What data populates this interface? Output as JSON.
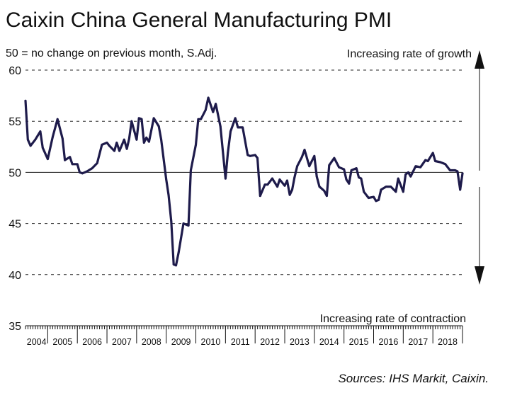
{
  "chart_data": {
    "type": "line",
    "title": "Caixin China General Manufacturing PMI",
    "subtitle": "50 = no change on previous month, S.Adj.",
    "annotation_top": "Increasing rate of growth",
    "annotation_bottom": "Increasing rate of contraction",
    "source": "Sources: IHS Markit, Caixin.",
    "xlabel": "",
    "ylabel": "",
    "ylim": [
      35,
      60
    ],
    "yticks": [
      35,
      40,
      45,
      50,
      55,
      60
    ],
    "grid": "dashed horizontal at 40, 45, 55, 60; solid at 50",
    "x_start": 2004.25,
    "x_end": 2019.0,
    "x_tick_labels": [
      "2004",
      "2005",
      "2006",
      "2007",
      "2008",
      "2009",
      "2010",
      "2011",
      "2012",
      "2013",
      "2014",
      "2015",
      "2016",
      "2017",
      "2018"
    ],
    "series": [
      {
        "name": "Caixin China General Manufacturing PMI",
        "color": "#1e1b4b",
        "x": [
          2004.25,
          2004.33,
          2004.42,
          2004.58,
          2004.75,
          2004.83,
          2005.0,
          2005.17,
          2005.33,
          2005.5,
          2005.58,
          2005.75,
          2005.83,
          2006.0,
          2006.08,
          2006.17,
          2006.33,
          2006.5,
          2006.67,
          2006.83,
          2007.0,
          2007.08,
          2007.25,
          2007.33,
          2007.42,
          2007.58,
          2007.67,
          2007.75,
          2007.83,
          2008.0,
          2008.08,
          2008.17,
          2008.25,
          2008.33,
          2008.42,
          2008.58,
          2008.75,
          2008.83,
          2009.0,
          2009.08,
          2009.17,
          2009.25,
          2009.33,
          2009.42,
          2009.58,
          2009.75,
          2009.83,
          2010.0,
          2010.08,
          2010.17,
          2010.33,
          2010.42,
          2010.58,
          2010.67,
          2010.83,
          2010.92,
          2011.0,
          2011.08,
          2011.17,
          2011.33,
          2011.42,
          2011.58,
          2011.75,
          2011.83,
          2012.0,
          2012.08,
          2012.17,
          2012.33,
          2012.42,
          2012.58,
          2012.75,
          2012.83,
          2013.0,
          2013.08,
          2013.17,
          2013.25,
          2013.33,
          2013.42,
          2013.58,
          2013.67,
          2013.83,
          2014.0,
          2014.08,
          2014.17,
          2014.33,
          2014.42,
          2014.5,
          2014.67,
          2014.83,
          2015.0,
          2015.08,
          2015.17,
          2015.25,
          2015.42,
          2015.5,
          2015.58,
          2015.67,
          2015.83,
          2016.0,
          2016.08,
          2016.17,
          2016.25,
          2016.42,
          2016.58,
          2016.75,
          2016.83,
          2017.0,
          2017.08,
          2017.17,
          2017.25,
          2017.42,
          2017.58,
          2017.75,
          2017.83,
          2018.0,
          2018.08,
          2018.25,
          2018.42,
          2018.58,
          2018.75,
          2018.83,
          2018.92,
          2019.0
        ],
        "values": [
          57.0,
          53.2,
          52.6,
          53.2,
          54.0,
          52.4,
          51.3,
          53.5,
          55.2,
          53.3,
          51.2,
          51.5,
          50.8,
          50.8,
          50.0,
          49.9,
          50.1,
          50.4,
          50.9,
          52.7,
          52.9,
          52.6,
          52.1,
          52.9,
          52.1,
          53.2,
          52.3,
          53.3,
          55.0,
          53.2,
          55.3,
          55.2,
          52.9,
          53.4,
          53.0,
          55.3,
          54.5,
          53.2,
          49.3,
          47.8,
          45.2,
          41.0,
          40.9,
          42.2,
          45.0,
          44.8,
          50.2,
          52.7,
          55.2,
          55.2,
          56.1,
          57.3,
          55.9,
          56.7,
          54.5,
          51.8,
          49.4,
          51.9,
          54.0,
          55.3,
          54.4,
          54.4,
          51.7,
          51.6,
          51.7,
          51.4,
          47.7,
          48.8,
          48.8,
          49.4,
          48.6,
          49.3,
          48.7,
          49.2,
          47.8,
          48.3,
          49.5,
          50.6,
          51.5,
          52.2,
          50.6,
          51.6,
          49.6,
          48.6,
          48.2,
          47.7,
          50.7,
          51.4,
          50.5,
          50.3,
          49.3,
          48.9,
          50.2,
          50.4,
          49.5,
          49.4,
          48.1,
          47.5,
          47.6,
          47.2,
          47.3,
          48.3,
          48.6,
          48.6,
          48.1,
          49.4,
          48.1,
          49.8,
          50.0,
          49.6,
          50.6,
          50.5,
          51.2,
          51.1,
          51.9,
          51.1,
          51.0,
          50.8,
          50.2,
          50.2,
          50.1,
          48.3,
          49.9
        ]
      }
    ]
  }
}
